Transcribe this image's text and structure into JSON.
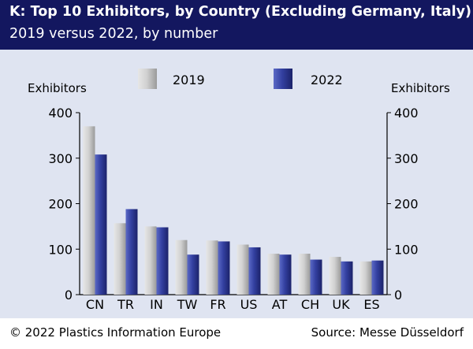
{
  "header": {
    "title": "K: Top 10 Exhibitors, by Country (Excluding Germany, Italy)",
    "subtitle": "2019 versus 2022, by number"
  },
  "footer": {
    "copyright": "© 2022 Plastics Information Europe",
    "source": "Source: Messe Düsseldorf"
  },
  "colors": {
    "header_bg": "#13175f",
    "panel_bg": "#dfe4f1",
    "series_2019": "#bfbfbf",
    "series_2022": "#3340a0"
  },
  "chart_data": {
    "type": "bar",
    "categories": [
      "CN",
      "TR",
      "IN",
      "TW",
      "FR",
      "US",
      "AT",
      "CH",
      "UK",
      "ES"
    ],
    "series": [
      {
        "name": "2019",
        "values": [
          370,
          157,
          150,
          120,
          119,
          110,
          90,
          90,
          83,
          73
        ]
      },
      {
        "name": "2022",
        "values": [
          308,
          188,
          148,
          88,
          117,
          104,
          88,
          77,
          73,
          75
        ]
      }
    ],
    "ylabel_left": "Exhibitors",
    "ylabel_right": "Exhibitors",
    "ylim": [
      0,
      400
    ],
    "yticks": [
      0,
      100,
      200,
      300,
      400
    ],
    "grid": false,
    "legend_position": "top"
  }
}
